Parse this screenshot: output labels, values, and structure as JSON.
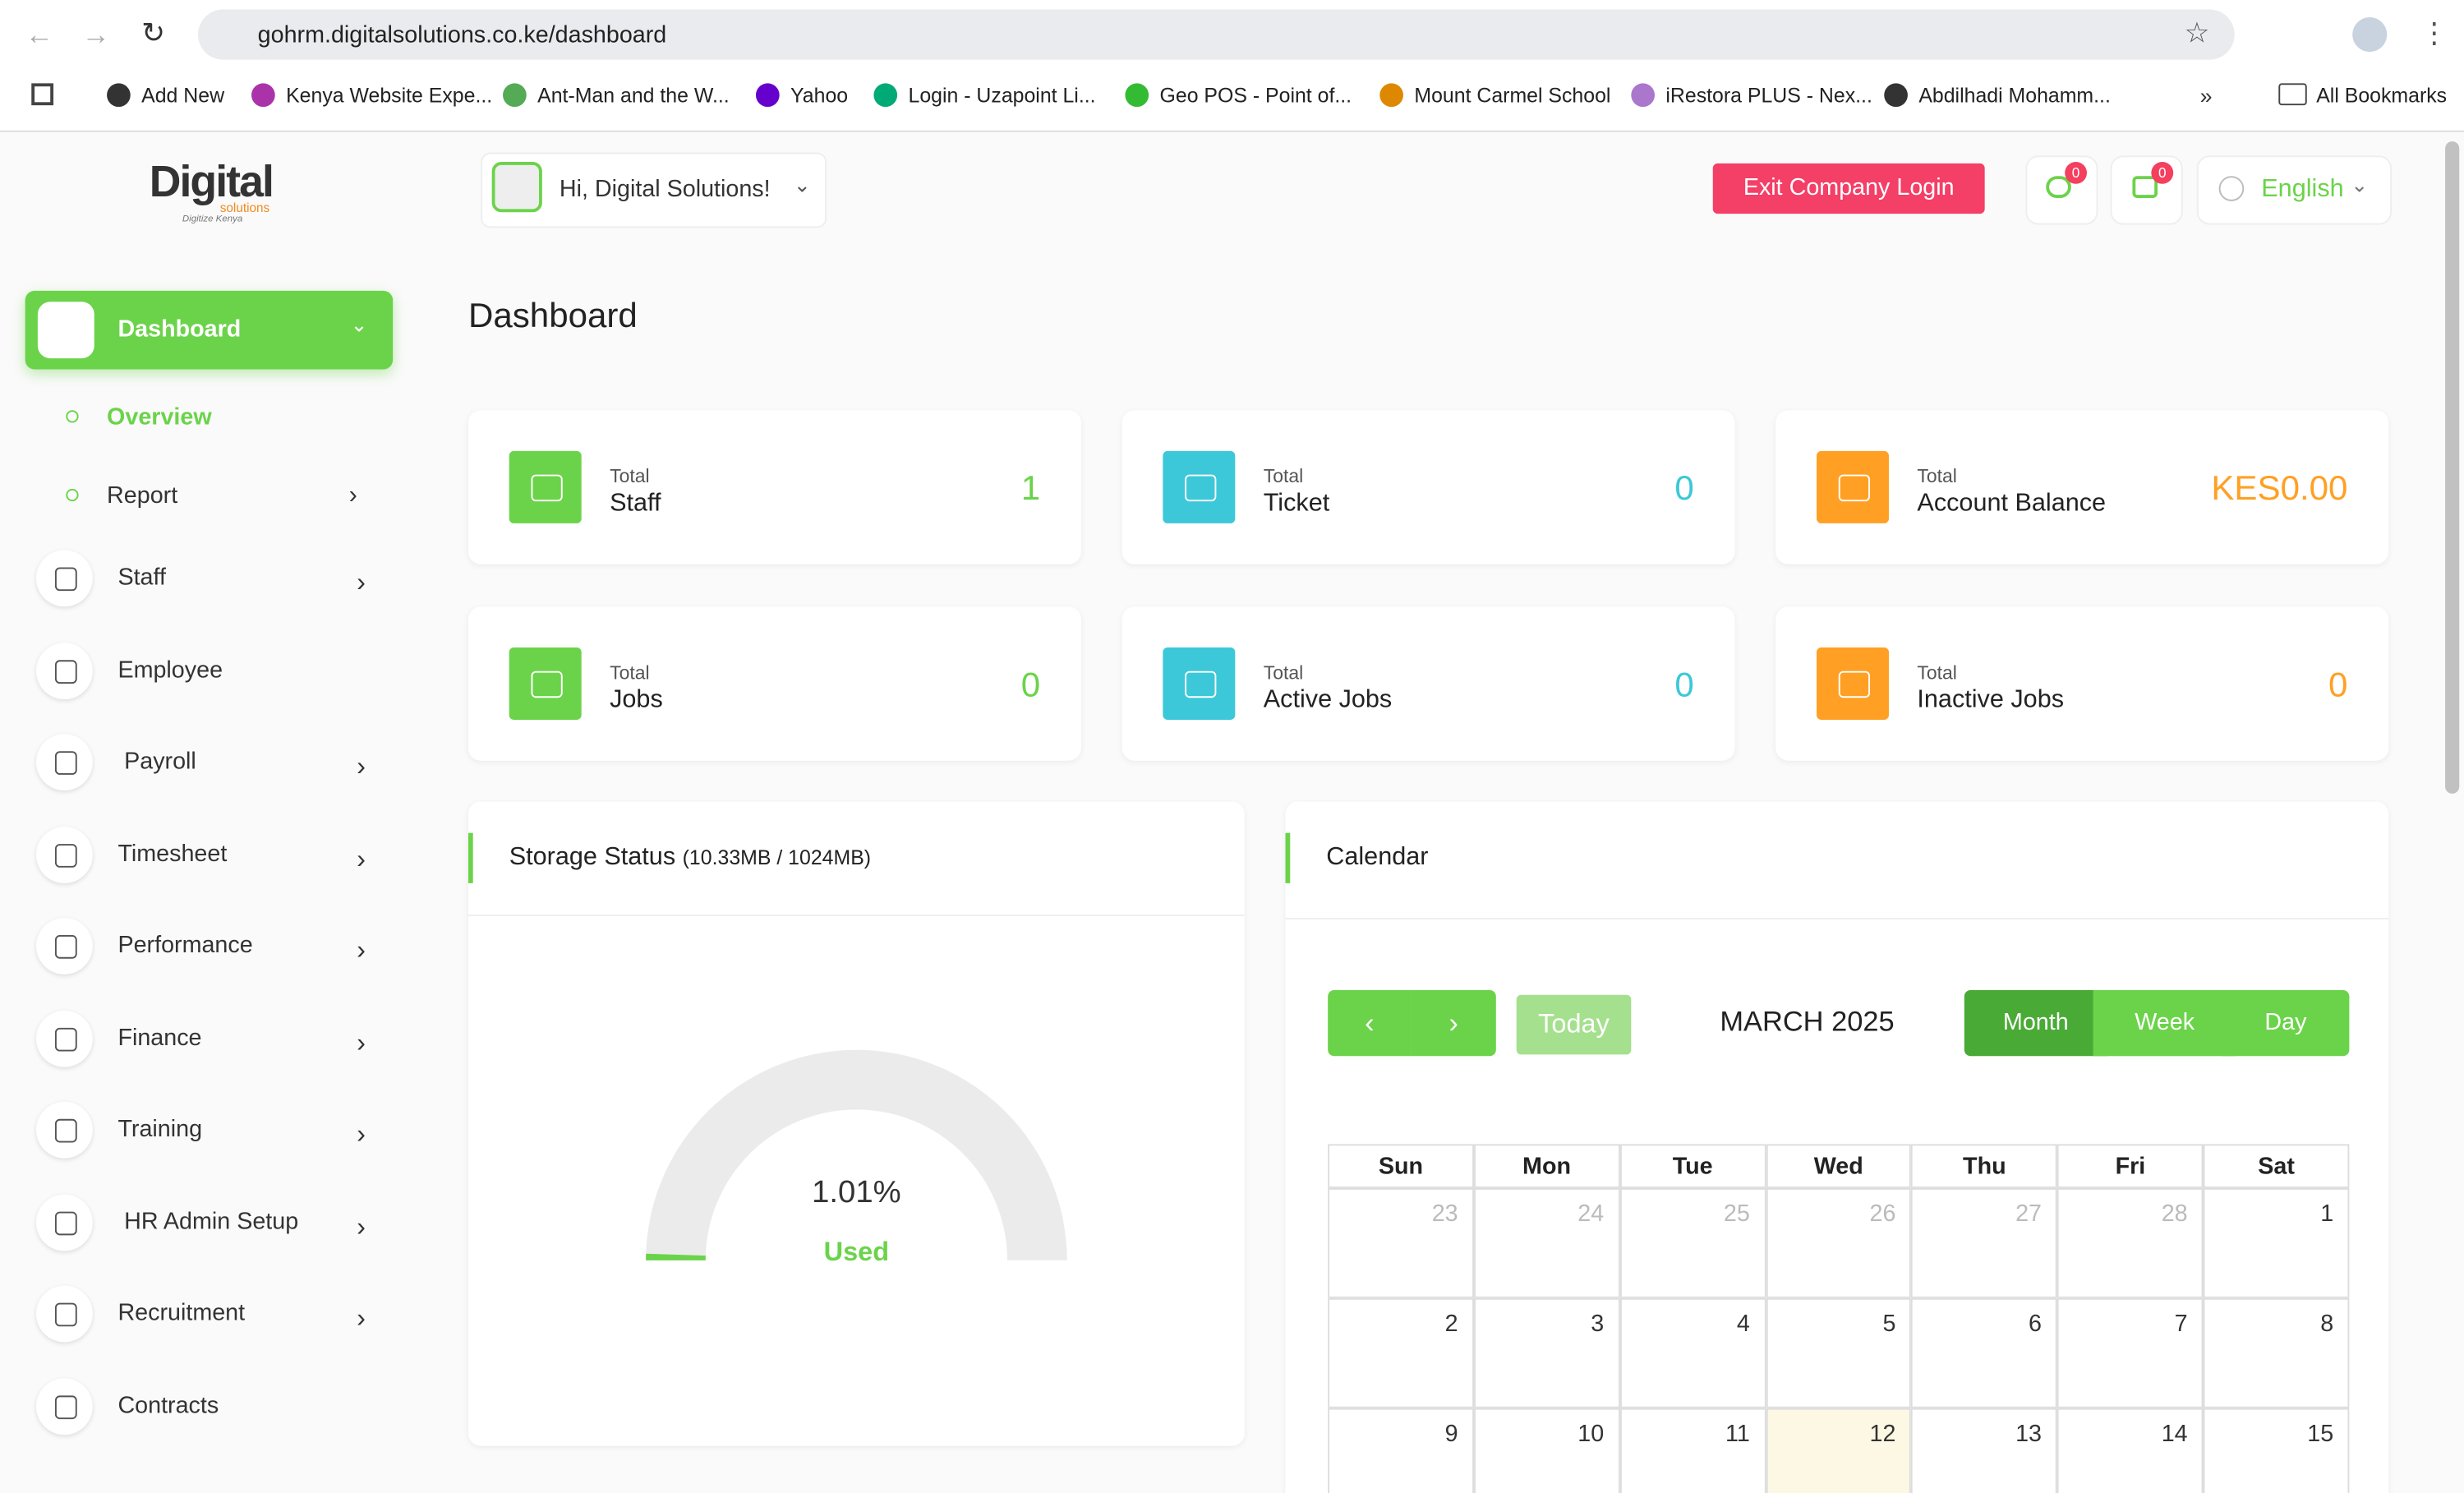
{
  "browser": {
    "url": "gohrm.digitalsolutions.co.ke/dashboard",
    "bookmarks": [
      "Add New",
      "Kenya Website Expe...",
      "Ant-Man and the W...",
      "Yahoo",
      "Login - Uzapoint Li...",
      "Geo POS - Point of...",
      "Mount Carmel School",
      "iRestora PLUS - Nex...",
      "Abdilhadi Mohamm..."
    ],
    "all_bookmarks": "All Bookmarks"
  },
  "logo": {
    "name": "Digital",
    "sub": "solutions",
    "tagline": "Digitize Kenya"
  },
  "header": {
    "greeting": "Hi, Digital Solutions!",
    "exit": "Exit Company Login",
    "chat_badge": "0",
    "message_badge": "0",
    "language": "English"
  },
  "sidebar": {
    "active": "Dashboard",
    "submenu": [
      "Overview",
      "Report"
    ],
    "items": [
      "Staff",
      "Employee",
      "Payroll",
      "Timesheet",
      "Performance",
      "Finance",
      "Training",
      "HR Admin Setup",
      "Recruitment",
      "Contracts"
    ]
  },
  "page_title": "Dashboard",
  "stats": [
    {
      "label": "Total",
      "name": "Staff",
      "value": "1"
    },
    {
      "label": "Total",
      "name": "Ticket",
      "value": "0"
    },
    {
      "label": "Total",
      "name": "Account Balance",
      "value": "KES0.00"
    },
    {
      "label": "Total",
      "name": "Jobs",
      "value": "0"
    },
    {
      "label": "Total",
      "name": "Active Jobs",
      "value": "0"
    },
    {
      "label": "Total",
      "name": "Inactive Jobs",
      "value": "0"
    }
  ],
  "storage": {
    "title": "Storage Status",
    "detail": "(10.33MB / 1024MB)",
    "gauge": {
      "value": 1.01,
      "label": "1.01%"
    },
    "caption": "Used"
  },
  "calendar": {
    "title": "Calendar",
    "today": "Today",
    "month": "MARCH 2025",
    "views": [
      "Month",
      "Week",
      "Day"
    ],
    "weekdays": [
      "Sun",
      "Mon",
      "Tue",
      "Wed",
      "Thu",
      "Fri",
      "Sat"
    ],
    "weeks": [
      [
        "23",
        "24",
        "25",
        "26",
        "27",
        "28",
        "1"
      ],
      [
        "2",
        "3",
        "4",
        "5",
        "6",
        "7",
        "8"
      ],
      [
        "9",
        "10",
        "11",
        "12",
        "13",
        "14",
        "15"
      ]
    ]
  }
}
